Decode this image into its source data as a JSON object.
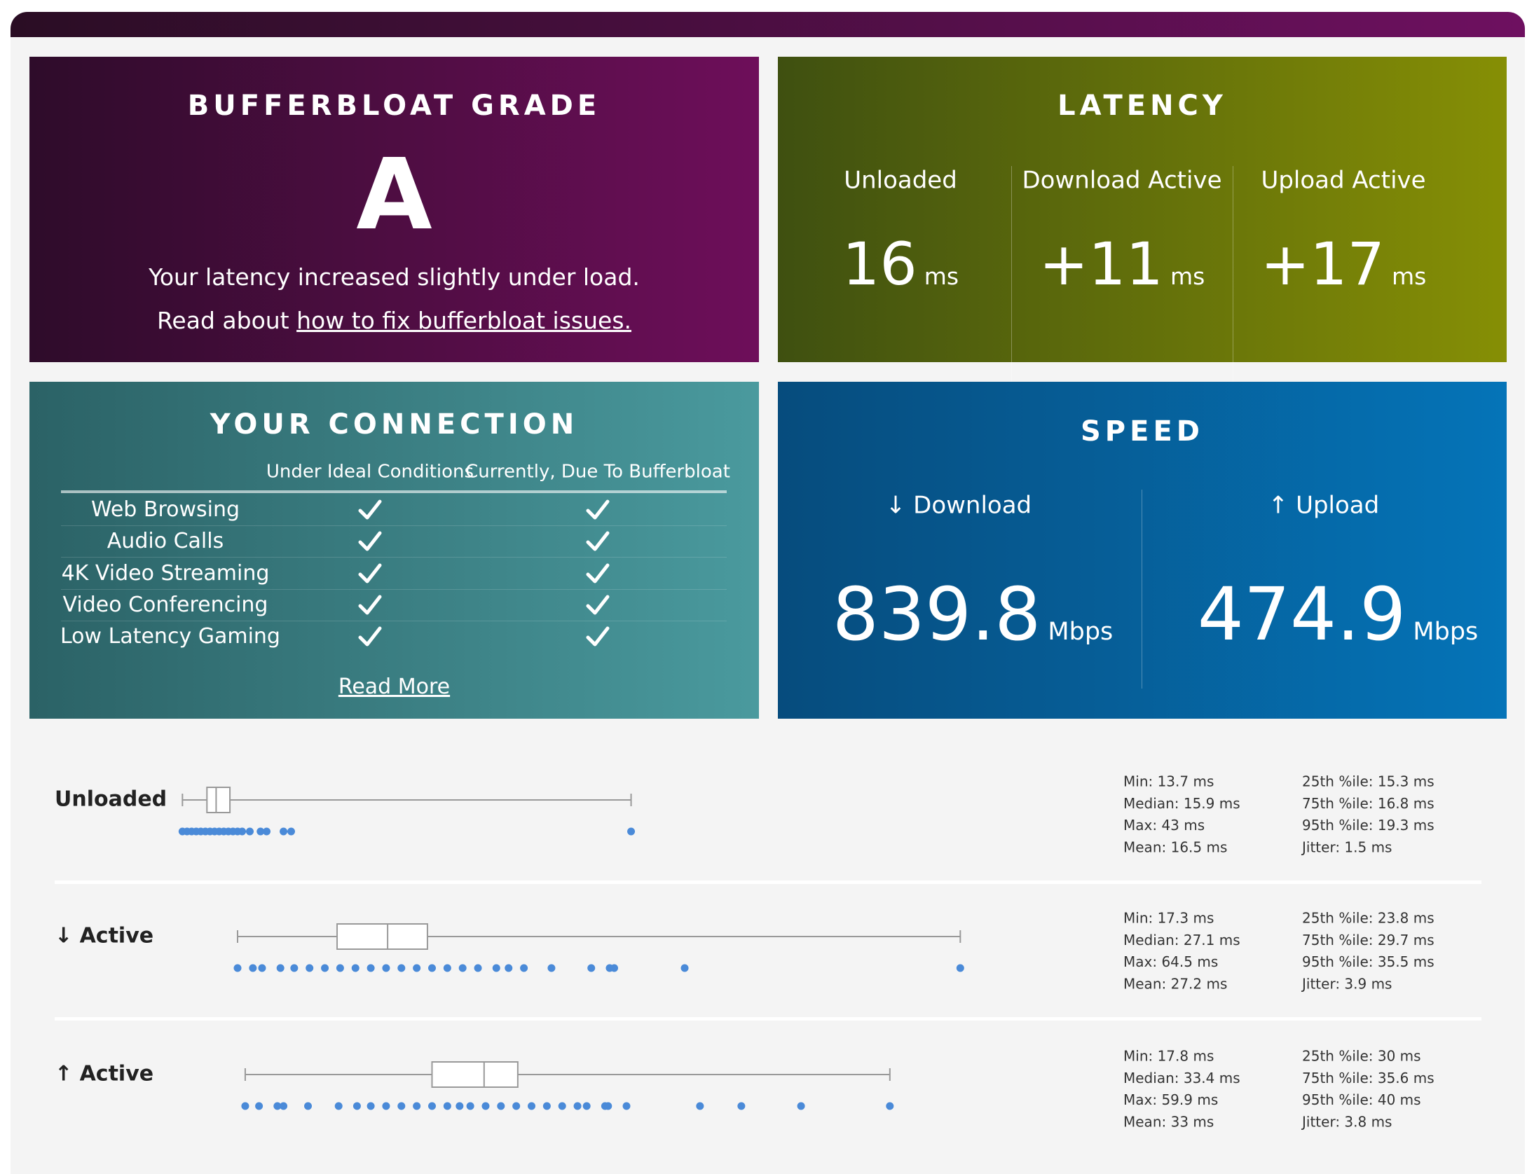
{
  "grade": {
    "title": "BUFFERBLOAT GRADE",
    "grade": "A",
    "description": "Your latency increased slightly under load.",
    "read_prefix": "Read about",
    "link": "how to fix bufferbloat issues."
  },
  "latency": {
    "title": "LATENCY",
    "columns": [
      {
        "label": "Unloaded",
        "value": 16,
        "unit": "ms"
      },
      {
        "label": "Download Active",
        "value": "+11",
        "unit": "ms"
      },
      {
        "label": "Upload Active",
        "value": "+17",
        "unit": "ms"
      }
    ]
  },
  "connection": {
    "title": "YOUR CONNECTION",
    "headers": [
      "Under Ideal Conditions",
      "Currently, Due To Bufferbloat"
    ],
    "rows": [
      {
        "label": "Web Browsing",
        "ideal": true,
        "current": true
      },
      {
        "label": "Audio Calls",
        "ideal": true,
        "current": true
      },
      {
        "label": "4K Video Streaming",
        "ideal": true,
        "current": true
      },
      {
        "label": "Video Conferencing",
        "ideal": true,
        "current": true
      },
      {
        "label": "Low Latency Gaming",
        "ideal": true,
        "current": true
      }
    ],
    "link": "Read More"
  },
  "speed": {
    "title": "SPEED",
    "columns": [
      {
        "label": "↓ Download",
        "value": 839.8,
        "unit": "Mbps"
      },
      {
        "label": "↑ Upload",
        "value": 474.9,
        "unit": "Mbps"
      }
    ]
  },
  "distribution": {
    "rows": [
      {
        "label": "Unloaded",
        "min": {
          "value": 13.7,
          "label": "Min: 13.7 ms"
        },
        "median": {
          "value": 15.9,
          "label": "Median: 15.9 ms"
        },
        "max": {
          "value": 43,
          "label": "Max: 43 ms"
        },
        "mean": {
          "value": 16.5,
          "label": "Mean: 16.5 ms"
        },
        "p25": {
          "value": 15.3,
          "label": "25th %ile: 15.3 ms"
        },
        "p75": {
          "value": 16.8,
          "label": "75th %ile: 16.8 ms"
        },
        "p95": {
          "value": 19.3,
          "label": "95th %ile: 19.3 ms"
        },
        "jitter": {
          "value": 1.5,
          "label": "Jitter: 1.5 ms"
        },
        "samples": [
          13.7,
          14,
          14.3,
          14.6,
          14.9,
          15.2,
          15.5,
          15.8,
          16.1,
          16.4,
          16.7,
          17,
          17.3,
          17.6,
          18.1,
          18.8,
          19.2,
          20.3,
          20.8,
          43
        ]
      },
      {
        "label": "↓ Active",
        "min": {
          "value": 17.3,
          "label": "Min: 17.3 ms"
        },
        "median": {
          "value": 27.1,
          "label": "Median: 27.1 ms"
        },
        "max": {
          "value": 64.5,
          "label": "Max: 64.5 ms"
        },
        "mean": {
          "value": 27.2,
          "label": "Mean: 27.2 ms"
        },
        "p25": {
          "value": 23.8,
          "label": "25th %ile: 23.8 ms"
        },
        "p75": {
          "value": 29.7,
          "label": "75th %ile: 29.7 ms"
        },
        "p95": {
          "value": 35.5,
          "label": "95th %ile: 35.5 ms"
        },
        "jitter": {
          "value": 3.9,
          "label": "Jitter: 3.9 ms"
        },
        "samples": [
          17.3,
          18.3,
          18.9,
          20.1,
          21,
          22,
          23,
          24,
          25,
          26,
          27,
          28,
          29,
          30,
          31,
          32,
          33,
          34.2,
          35,
          36,
          37.8,
          40.4,
          41.6,
          41.9,
          46.5,
          64.5
        ]
      },
      {
        "label": "↑ Active",
        "min": {
          "value": 17.8,
          "label": "Min: 17.8 ms"
        },
        "median": {
          "value": 33.4,
          "label": "Median: 33.4 ms"
        },
        "max": {
          "value": 59.9,
          "label": "Max: 59.9 ms"
        },
        "mean": {
          "value": 33,
          "label": "Mean: 33 ms"
        },
        "p25": {
          "value": 30,
          "label": "25th %ile: 30 ms"
        },
        "p75": {
          "value": 35.6,
          "label": "75th %ile: 35.6 ms"
        },
        "p95": {
          "value": 40,
          "label": "95th %ile: 40 ms"
        },
        "jitter": {
          "value": 3.8,
          "label": "Jitter: 3.8 ms"
        },
        "samples": [
          17.8,
          18.7,
          19.9,
          20.3,
          21.9,
          23.9,
          25.1,
          26,
          27,
          28,
          29,
          30,
          31,
          31.8,
          32.5,
          33.5,
          34.5,
          35.5,
          36.5,
          37.5,
          38.5,
          39.5,
          40.1,
          41.3,
          41.5,
          42.7,
          47.5,
          50.2,
          54.1,
          59.9
        ]
      }
    ]
  }
}
